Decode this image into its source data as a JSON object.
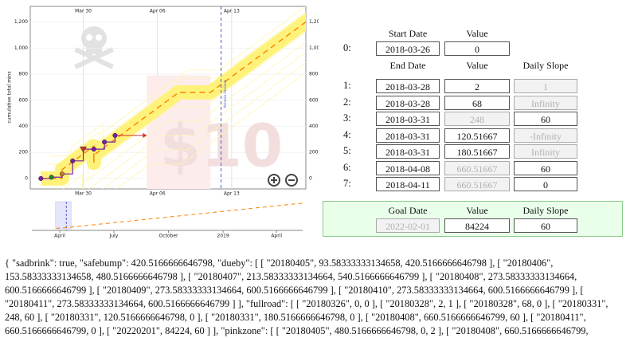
{
  "graph": {
    "ylabel": "cumulative total mins",
    "ylim": [
      -80,
      1320
    ],
    "yticks": [
      0,
      200,
      400,
      600,
      800,
      {
        "value": 1000,
        "label": "1,000"
      },
      {
        "value": 1200,
        "label": "1,200"
      }
    ],
    "xlim": [
      "2018-03-25",
      "2018-04-20"
    ],
    "xticks": [
      {
        "value": "2018-03-30",
        "label": "Mar 30"
      },
      {
        "value": "2018-04-06",
        "label": "Apr 06"
      },
      {
        "value": "2018-04-13",
        "label": "Apr 13"
      }
    ],
    "points": {
      "x": [
        "2018-03-26",
        "2018-03-27",
        "2018-03-28",
        "2018-03-29",
        "2018-03-30",
        "2018-03-31",
        "2018-04-01",
        "2018-04-02"
      ],
      "values": [
        0,
        10,
        35,
        135,
        225,
        225,
        280,
        330
      ],
      "colors": [
        "#7b1fa2",
        "#2e7d32",
        "#c77a20",
        "#7b1fa2",
        "#d32f2f",
        "#7b1fa2",
        "#7b1fa2",
        "#7b1fa2"
      ],
      "markers": [
        "circle",
        "circle",
        "circle",
        "circle",
        "triangle",
        "circle",
        "circle",
        "circle"
      ]
    },
    "pinkzone": {
      "x": [
        "2018-04-05",
        "2018-04-11"
      ],
      "top": 790
    },
    "horizon": {
      "x": "2018-04-12",
      "label": "Akrasia Horizon"
    },
    "watermark": "$10",
    "road_color": "#ff8000",
    "band_color": "#fff27a",
    "line_color": "#7b1fa2"
  },
  "overview": {
    "xlim": [
      "2018-02-13",
      "2019-05-15"
    ],
    "ylim": [
      -2000,
      26000
    ],
    "xticks": [
      {
        "value": "2018-04-01",
        "label": "April"
      },
      {
        "value": "2018-07-01",
        "label": "July"
      },
      {
        "value": "2018-10-01",
        "label": "October"
      },
      {
        "value": "2019-01-01",
        "label": "2019"
      },
      {
        "value": "2019-04-01",
        "label": "April"
      }
    ]
  },
  "road": {
    "start_headers": [
      "Start Date",
      "Value"
    ],
    "end_headers": [
      "End Date",
      "Value",
      "Daily Slope"
    ],
    "goal_headers": [
      "Goal Date",
      "Value",
      "Daily Slope"
    ],
    "start": {
      "label": "0:",
      "date": "2018-03-26",
      "value": "0"
    },
    "rows": [
      {
        "label": "1:",
        "date": "2018-03-28",
        "value": "2",
        "slope": "1",
        "disabled": "slope"
      },
      {
        "label": "2:",
        "date": "2018-03-28",
        "value": "68",
        "slope": "Infinity",
        "disabled": "slope"
      },
      {
        "label": "3:",
        "date": "2018-03-31",
        "value": "248",
        "slope": "60",
        "disabled": "value"
      },
      {
        "label": "4:",
        "date": "2018-03-31",
        "value": "120.51667",
        "slope": "-Infinity",
        "disabled": "slope"
      },
      {
        "label": "5:",
        "date": "2018-03-31",
        "value": "180.51667",
        "slope": "Infinity",
        "disabled": "slope"
      },
      {
        "label": "6:",
        "date": "2018-04-08",
        "value": "660.51667",
        "slope": "60",
        "disabled": "value"
      },
      {
        "label": "7:",
        "date": "2018-04-11",
        "value": "660.51667",
        "slope": "0",
        "disabled": "value"
      }
    ],
    "goal": {
      "date": "2022-02-01",
      "value": "84224",
      "slope": "60",
      "disabled": "date"
    }
  },
  "dump": "{ \"sadbrink\": true, \"safebump\": 420.5166666646798, \"dueby\": [ [ \"20180405\", 93.58333333134658, 420.5166666646798 ], [ \"20180406\", 153.58333333134658, 480.5166666646798 ], [ \"20180407\", 213.58333333134664, 540.5166666646799 ], [ \"20180408\", 273.58333333134664, 600.5166666646799 ], [ \"20180409\", 273.58333333134664, 600.5166666646799 ], [ \"20180410\", 273.58333333134664, 600.5166666646799 ], [ \"20180411\", 273.58333333134664, 600.5166666646799 ] ], \"fullroad\": [ [ \"20180326\", 0, 0 ], [ \"20180328\", 2, 1 ], [ \"20180328\", 68, 0 ], [ \"20180331\", 248, 60 ], [ \"20180331\", 120.5166666646798, 0 ], [ \"20180331\", 180.5166666646798, 0 ], [ \"20180408\", 660.5166666646799, 60 ], [ \"20180411\", 660.5166666646799, 0 ], [ \"20220201\", 84224, 60 ] ], \"pinkzone\": [ [ \"20180405\", 480.5166666646798, 0, 2 ], [ \"20180408\", 660.5166666646799,"
}
